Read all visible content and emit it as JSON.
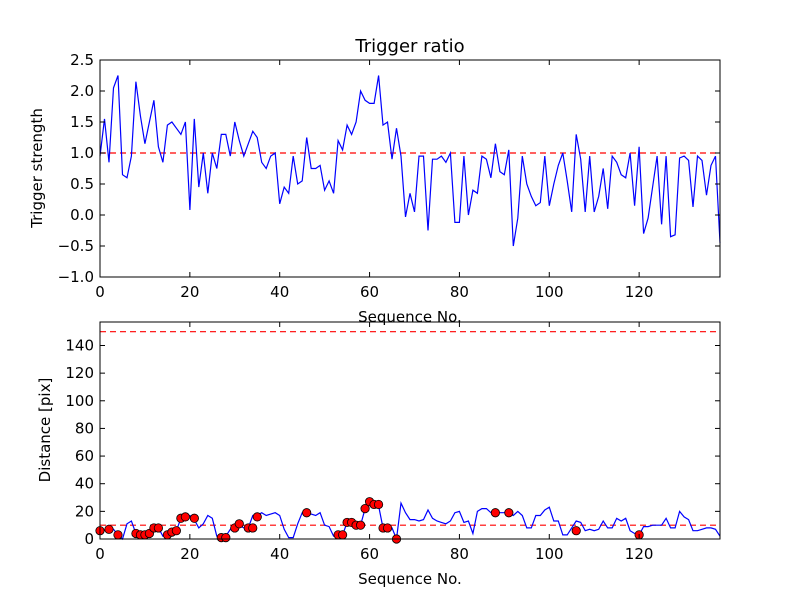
{
  "chart_data": [
    {
      "type": "line",
      "title": "Trigger ratio",
      "xlabel": "Sequence No.",
      "ylabel": "Trigger strength",
      "xlim": [
        0,
        138
      ],
      "ylim": [
        -1.0,
        2.5
      ],
      "xticks": [
        0,
        20,
        40,
        60,
        80,
        100,
        120
      ],
      "yticks": [
        -1.0,
        -0.5,
        0.0,
        0.5,
        1.0,
        1.5,
        2.0,
        2.5
      ],
      "ytick_labels": [
        "−1.0",
        "−0.5",
        "0.0",
        "0.5",
        "1.0",
        "1.5",
        "2.0",
        "2.5"
      ],
      "grid": false,
      "reference_line": {
        "y": 1.0,
        "color": "#ff0000",
        "style": "dashed"
      },
      "series": [
        {
          "color": "#0000ff",
          "x": [
            0,
            1,
            2,
            3,
            4,
            5,
            6,
            7,
            8,
            9,
            10,
            11,
            12,
            13,
            14,
            15,
            16,
            17,
            18,
            19,
            20,
            21,
            22,
            23,
            24,
            25,
            26,
            27,
            28,
            29,
            30,
            31,
            32,
            33,
            34,
            35,
            36,
            37,
            38,
            39,
            40,
            41,
            42,
            43,
            44,
            45,
            46,
            47,
            48,
            49,
            50,
            51,
            52,
            53,
            54,
            55,
            56,
            57,
            58,
            59,
            60,
            61,
            62,
            63,
            64,
            65,
            66,
            67,
            68,
            69,
            70,
            71,
            72,
            73,
            74,
            75,
            76,
            77,
            78,
            79,
            80,
            81,
            82,
            83,
            84,
            85,
            86,
            87,
            88,
            89,
            90,
            91,
            92,
            93,
            94,
            95,
            96,
            97,
            98,
            99,
            100,
            101,
            102,
            103,
            104,
            105,
            106,
            107,
            108,
            109,
            110,
            111,
            112,
            113,
            114,
            115,
            116,
            117,
            118,
            119,
            120,
            121,
            122,
            123,
            124,
            125,
            126,
            127,
            128,
            129,
            130,
            131,
            132,
            133,
            134,
            135,
            136,
            137,
            138
          ],
          "y": [
            0.95,
            1.55,
            0.85,
            2.05,
            2.25,
            0.65,
            0.6,
            0.95,
            2.15,
            1.6,
            1.15,
            1.5,
            1.85,
            1.1,
            0.85,
            1.45,
            1.5,
            1.4,
            1.3,
            1.5,
            0.08,
            1.55,
            0.45,
            1.0,
            0.35,
            1.0,
            0.75,
            1.3,
            1.3,
            0.95,
            1.5,
            1.2,
            0.95,
            1.15,
            1.35,
            1.25,
            0.85,
            0.75,
            0.95,
            1.0,
            0.18,
            0.45,
            0.35,
            0.95,
            0.5,
            0.55,
            1.25,
            0.75,
            0.75,
            0.8,
            0.4,
            0.55,
            0.35,
            1.2,
            1.05,
            1.45,
            1.3,
            1.5,
            2.0,
            1.85,
            1.8,
            1.8,
            2.25,
            1.45,
            1.5,
            0.9,
            1.4,
            0.95,
            -0.03,
            0.35,
            0.05,
            0.95,
            0.95,
            -0.25,
            0.9,
            0.9,
            0.95,
            0.85,
            1.0,
            -0.12,
            -0.12,
            0.95,
            0.0,
            0.4,
            0.35,
            0.95,
            0.9,
            0.6,
            1.15,
            0.7,
            0.65,
            1.05,
            -0.5,
            -0.05,
            0.95,
            0.5,
            0.3,
            0.15,
            0.2,
            0.95,
            0.15,
            0.5,
            0.8,
            1.0,
            0.55,
            0.05,
            1.3,
            0.9,
            0.05,
            0.95,
            0.05,
            0.3,
            0.75,
            0.1,
            0.95,
            0.85,
            0.65,
            0.6,
            1.0,
            0.15,
            1.1,
            -0.3,
            -0.05,
            0.45,
            0.95,
            -0.15,
            0.95,
            -0.35,
            -0.32,
            0.92,
            0.95,
            0.88,
            0.13,
            0.95,
            0.88,
            0.32,
            0.8,
            0.95,
            -0.45
          ]
        }
      ]
    },
    {
      "type": "line",
      "title": "",
      "xlabel": "Sequence No.",
      "ylabel": "Distance [pix]",
      "xlim": [
        0,
        138
      ],
      "ylim": [
        0,
        157
      ],
      "xticks": [
        0,
        20,
        40,
        60,
        80,
        100,
        120
      ],
      "yticks": [
        0,
        20,
        40,
        60,
        80,
        100,
        120,
        140
      ],
      "grid": false,
      "reference_lines": [
        {
          "y": 150,
          "color": "#ff0000",
          "style": "dashed"
        },
        {
          "y": 10,
          "color": "#ff0000",
          "style": "dashed"
        }
      ],
      "series": [
        {
          "color": "#0000ff",
          "x": [
            0,
            1,
            2,
            3,
            4,
            5,
            6,
            7,
            8,
            9,
            10,
            11,
            12,
            13,
            14,
            15,
            16,
            17,
            18,
            19,
            20,
            21,
            22,
            23,
            24,
            25,
            26,
            27,
            28,
            29,
            30,
            31,
            32,
            33,
            34,
            35,
            36,
            37,
            38,
            39,
            40,
            41,
            42,
            43,
            44,
            45,
            46,
            47,
            48,
            49,
            50,
            51,
            52,
            53,
            54,
            55,
            56,
            57,
            58,
            59,
            60,
            61,
            62,
            63,
            64,
            65,
            66,
            67,
            68,
            69,
            70,
            71,
            72,
            73,
            74,
            75,
            76,
            77,
            78,
            79,
            80,
            81,
            82,
            83,
            84,
            85,
            86,
            87,
            88,
            89,
            90,
            91,
            92,
            93,
            94,
            95,
            96,
            97,
            98,
            99,
            100,
            101,
            102,
            103,
            104,
            105,
            106,
            107,
            108,
            109,
            110,
            111,
            112,
            113,
            114,
            115,
            116,
            117,
            118,
            119,
            120,
            121,
            122,
            123,
            124,
            125,
            126,
            127,
            128,
            129,
            130,
            131,
            132,
            133,
            134,
            135,
            136,
            137,
            138
          ],
          "y": [
            6,
            6,
            10,
            7,
            3,
            0,
            11,
            13,
            4,
            4,
            3,
            2,
            8,
            8,
            2,
            4,
            6,
            6,
            15,
            16,
            17,
            14,
            8,
            11,
            17,
            15,
            2,
            1,
            2,
            7,
            11,
            10,
            8,
            8,
            17,
            17,
            19,
            17,
            18,
            19,
            17,
            7,
            1,
            1,
            11,
            19,
            20,
            18,
            17,
            19,
            10,
            9,
            2,
            2,
            3,
            12,
            11,
            10,
            10,
            22,
            25,
            25,
            24,
            8,
            8,
            8,
            0,
            26,
            19,
            14,
            14,
            13,
            14,
            21,
            15,
            13,
            12,
            11,
            13,
            19,
            20,
            12,
            13,
            4,
            20,
            22,
            22,
            19,
            19,
            19,
            19,
            19,
            17,
            20,
            17,
            8,
            8,
            17,
            17,
            21,
            23,
            13,
            13,
            3,
            3,
            8,
            13,
            12,
            6,
            7,
            6,
            7,
            13,
            8,
            8,
            15,
            13,
            15,
            6,
            4,
            3,
            9,
            9,
            10,
            10,
            10,
            15,
            8,
            8,
            20,
            16,
            14,
            6,
            6,
            7,
            8,
            8,
            7,
            2
          ]
        }
      ],
      "markers": {
        "color": "#ff0000",
        "shape": "circle",
        "x": [
          0,
          2,
          4,
          8,
          9,
          10,
          11,
          12,
          13,
          15,
          16,
          17,
          18,
          19,
          21,
          27,
          28,
          30,
          31,
          33,
          34,
          35,
          46,
          53,
          54,
          55,
          56,
          57,
          58,
          59,
          60,
          61,
          62,
          63,
          64,
          66,
          88,
          91,
          106,
          120
        ],
        "y": [
          6,
          7,
          3,
          4,
          3,
          3,
          4,
          8,
          8,
          3,
          5,
          6,
          15,
          16,
          15,
          1,
          1,
          8,
          11,
          8,
          8,
          16,
          19,
          3,
          3,
          12,
          12,
          10,
          10,
          22,
          27,
          25,
          25,
          8,
          8,
          0,
          19,
          19,
          6,
          3
        ]
      }
    }
  ]
}
